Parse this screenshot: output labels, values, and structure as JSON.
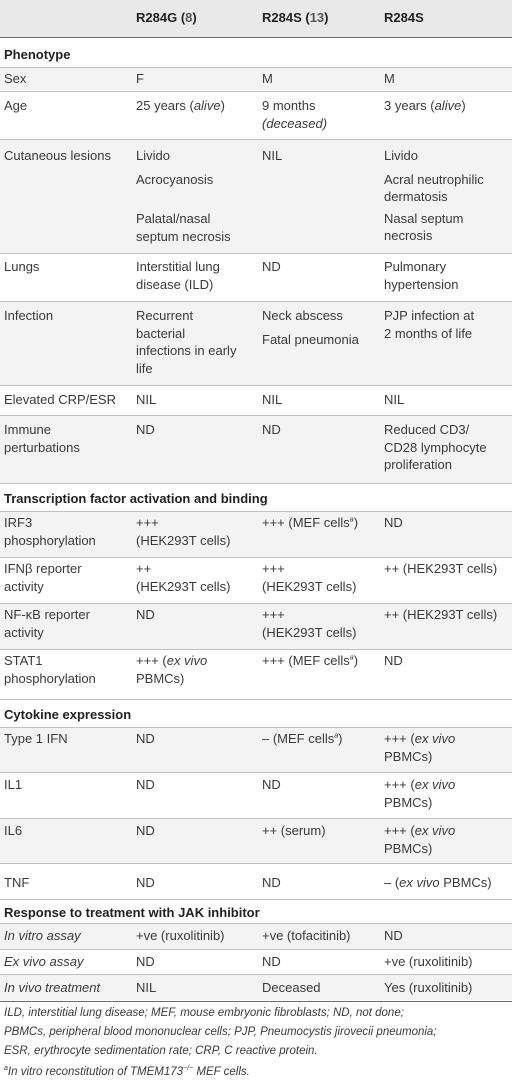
{
  "header": {
    "col1": "R284G",
    "col1_ref": "8",
    "col2": "R284S",
    "col2_ref": "13",
    "col3": "R284S"
  },
  "sections": {
    "phenotype": "Phenotype",
    "transcription": "Transcription factor activation and binding",
    "cytokine": "Cytokine expression",
    "jak": "Response to treatment with JAK inhibitor"
  },
  "rows": {
    "sex": {
      "label": "Sex",
      "c1": "F",
      "c2": "M",
      "c3": "M"
    },
    "age": {
      "label": "Age",
      "c1_pre": "25 years (",
      "c1_it": "alive",
      "c1_post": ")",
      "c2_a": "9 months",
      "c2_b": "(deceased)",
      "c3_pre": "3 years (",
      "c3_it": "alive",
      "c3_post": ")"
    },
    "cutaneous": {
      "label": "Cutaneous lesions",
      "c1_a": "Livido",
      "c1_b": "Acrocyanosis",
      "c1_c": "Palatal/nasal",
      "c1_d": "septum necrosis",
      "c2": "NIL",
      "c3_a": "Livido",
      "c3_b": "Acral neutrophilic",
      "c3_c": "dermatosis",
      "c3_d": "Nasal septum",
      "c3_e": "necrosis"
    },
    "lungs": {
      "label": "Lungs",
      "c1_a": "Interstitial lung",
      "c1_b": "disease (ILD)",
      "c2": "ND",
      "c3_a": "Pulmonary",
      "c3_b": "hypertension"
    },
    "infection": {
      "label": "Infection",
      "c1_a": "Recurrent",
      "c1_b": "bacterial",
      "c1_c": "infections in early",
      "c1_d": "life",
      "c2_a": "Neck abscess",
      "c2_b": "Fatal pneumonia",
      "c3_a": "PJP infection at",
      "c3_b": "2 months of life"
    },
    "crp": {
      "label": "Elevated CRP/ESR",
      "c1": "NIL",
      "c2": "NIL",
      "c3": "NIL"
    },
    "immune": {
      "label_a": "Immune",
      "label_b": "perturbations",
      "c1": "ND",
      "c2": "ND",
      "c3_a": "Reduced CD3/",
      "c3_b": "CD28 lymphocyte",
      "c3_c": "proliferation"
    },
    "irf3": {
      "label_a": "IRF3",
      "label_b": "phosphorylation",
      "c1_a": "+++",
      "c1_b": "(HEK293T cells)",
      "c2_pre": "+++ (MEF cells",
      "c2_sup": "a",
      "c2_post": ")",
      "c3": "ND"
    },
    "ifnb": {
      "label_a": "IFNβ reporter",
      "label_b": "activity",
      "c1_a": "++",
      "c1_b": "(HEK293T cells)",
      "c2_a": "+++",
      "c2_b": "(HEK293T cells)",
      "c3": "++ (HEK293T cells)"
    },
    "nfkb": {
      "label_a": "NF-κB reporter",
      "label_b": "activity",
      "c1": "ND",
      "c2_a": "+++",
      "c2_b": "(HEK293T cells)",
      "c3": "++ (HEK293T cells)"
    },
    "stat1": {
      "label_a": "STAT1",
      "label_b": "phosphorylation",
      "c1_pre": "+++ (",
      "c1_it": "ex vivo",
      "c1_b": "PBMCs)",
      "c2_pre": "+++ (MEF cells",
      "c2_sup": "a",
      "c2_post": ")",
      "c3": "ND"
    },
    "ifn1": {
      "label": "Type 1 IFN",
      "c1": "ND",
      "c2_pre": "– (MEF cells",
      "c2_sup": "a",
      "c2_post": ")",
      "c3_pre": "+++ (",
      "c3_it": "ex vivo",
      "c3_b": "PBMCs)"
    },
    "il1": {
      "label": "IL1",
      "c1": "ND",
      "c2": "ND",
      "c3_pre": "+++ (",
      "c3_it": "ex vivo",
      "c3_b": "PBMCs)"
    },
    "il6": {
      "label": "IL6",
      "c1": "ND",
      "c2": "++ (serum)",
      "c3_pre": "+++ (",
      "c3_it": "ex vivo",
      "c3_b": "PBMCs)"
    },
    "tnf": {
      "label": "TNF",
      "c1": "ND",
      "c2": "ND",
      "c3_pre": "– (",
      "c3_it": "ex vivo",
      "c3_post": " PBMCs)"
    },
    "invitro": {
      "label": "In vitro assay",
      "c1": "+ve (ruxolitinib)",
      "c2": "+ve (tofacitinib)",
      "c3": "ND"
    },
    "exvivo": {
      "label": "Ex vivo assay",
      "c1": "ND",
      "c2": "ND",
      "c3": "+ve (ruxolitinib)"
    },
    "invivo": {
      "label": "In vivo treatment",
      "c1": "NIL",
      "c2": "Deceased",
      "c3": "Yes (ruxolitinib)"
    }
  },
  "footnotes": {
    "line1": "ILD, interstitial lung disease; MEF, mouse embryonic fibroblasts; ND, not done;",
    "line2": "PBMCs, peripheral blood mononuclear cells; PJP, Pneumocystis jirovecii pneumonia;",
    "line3": "ESR, erythrocyte sedimentation rate; CRP, C reactive protein.",
    "line4_sup": "a",
    "line4_pre": "In vitro reconstitution of TMEM173",
    "line4_sup2": "−/−",
    "line4_post": " MEF cells."
  }
}
